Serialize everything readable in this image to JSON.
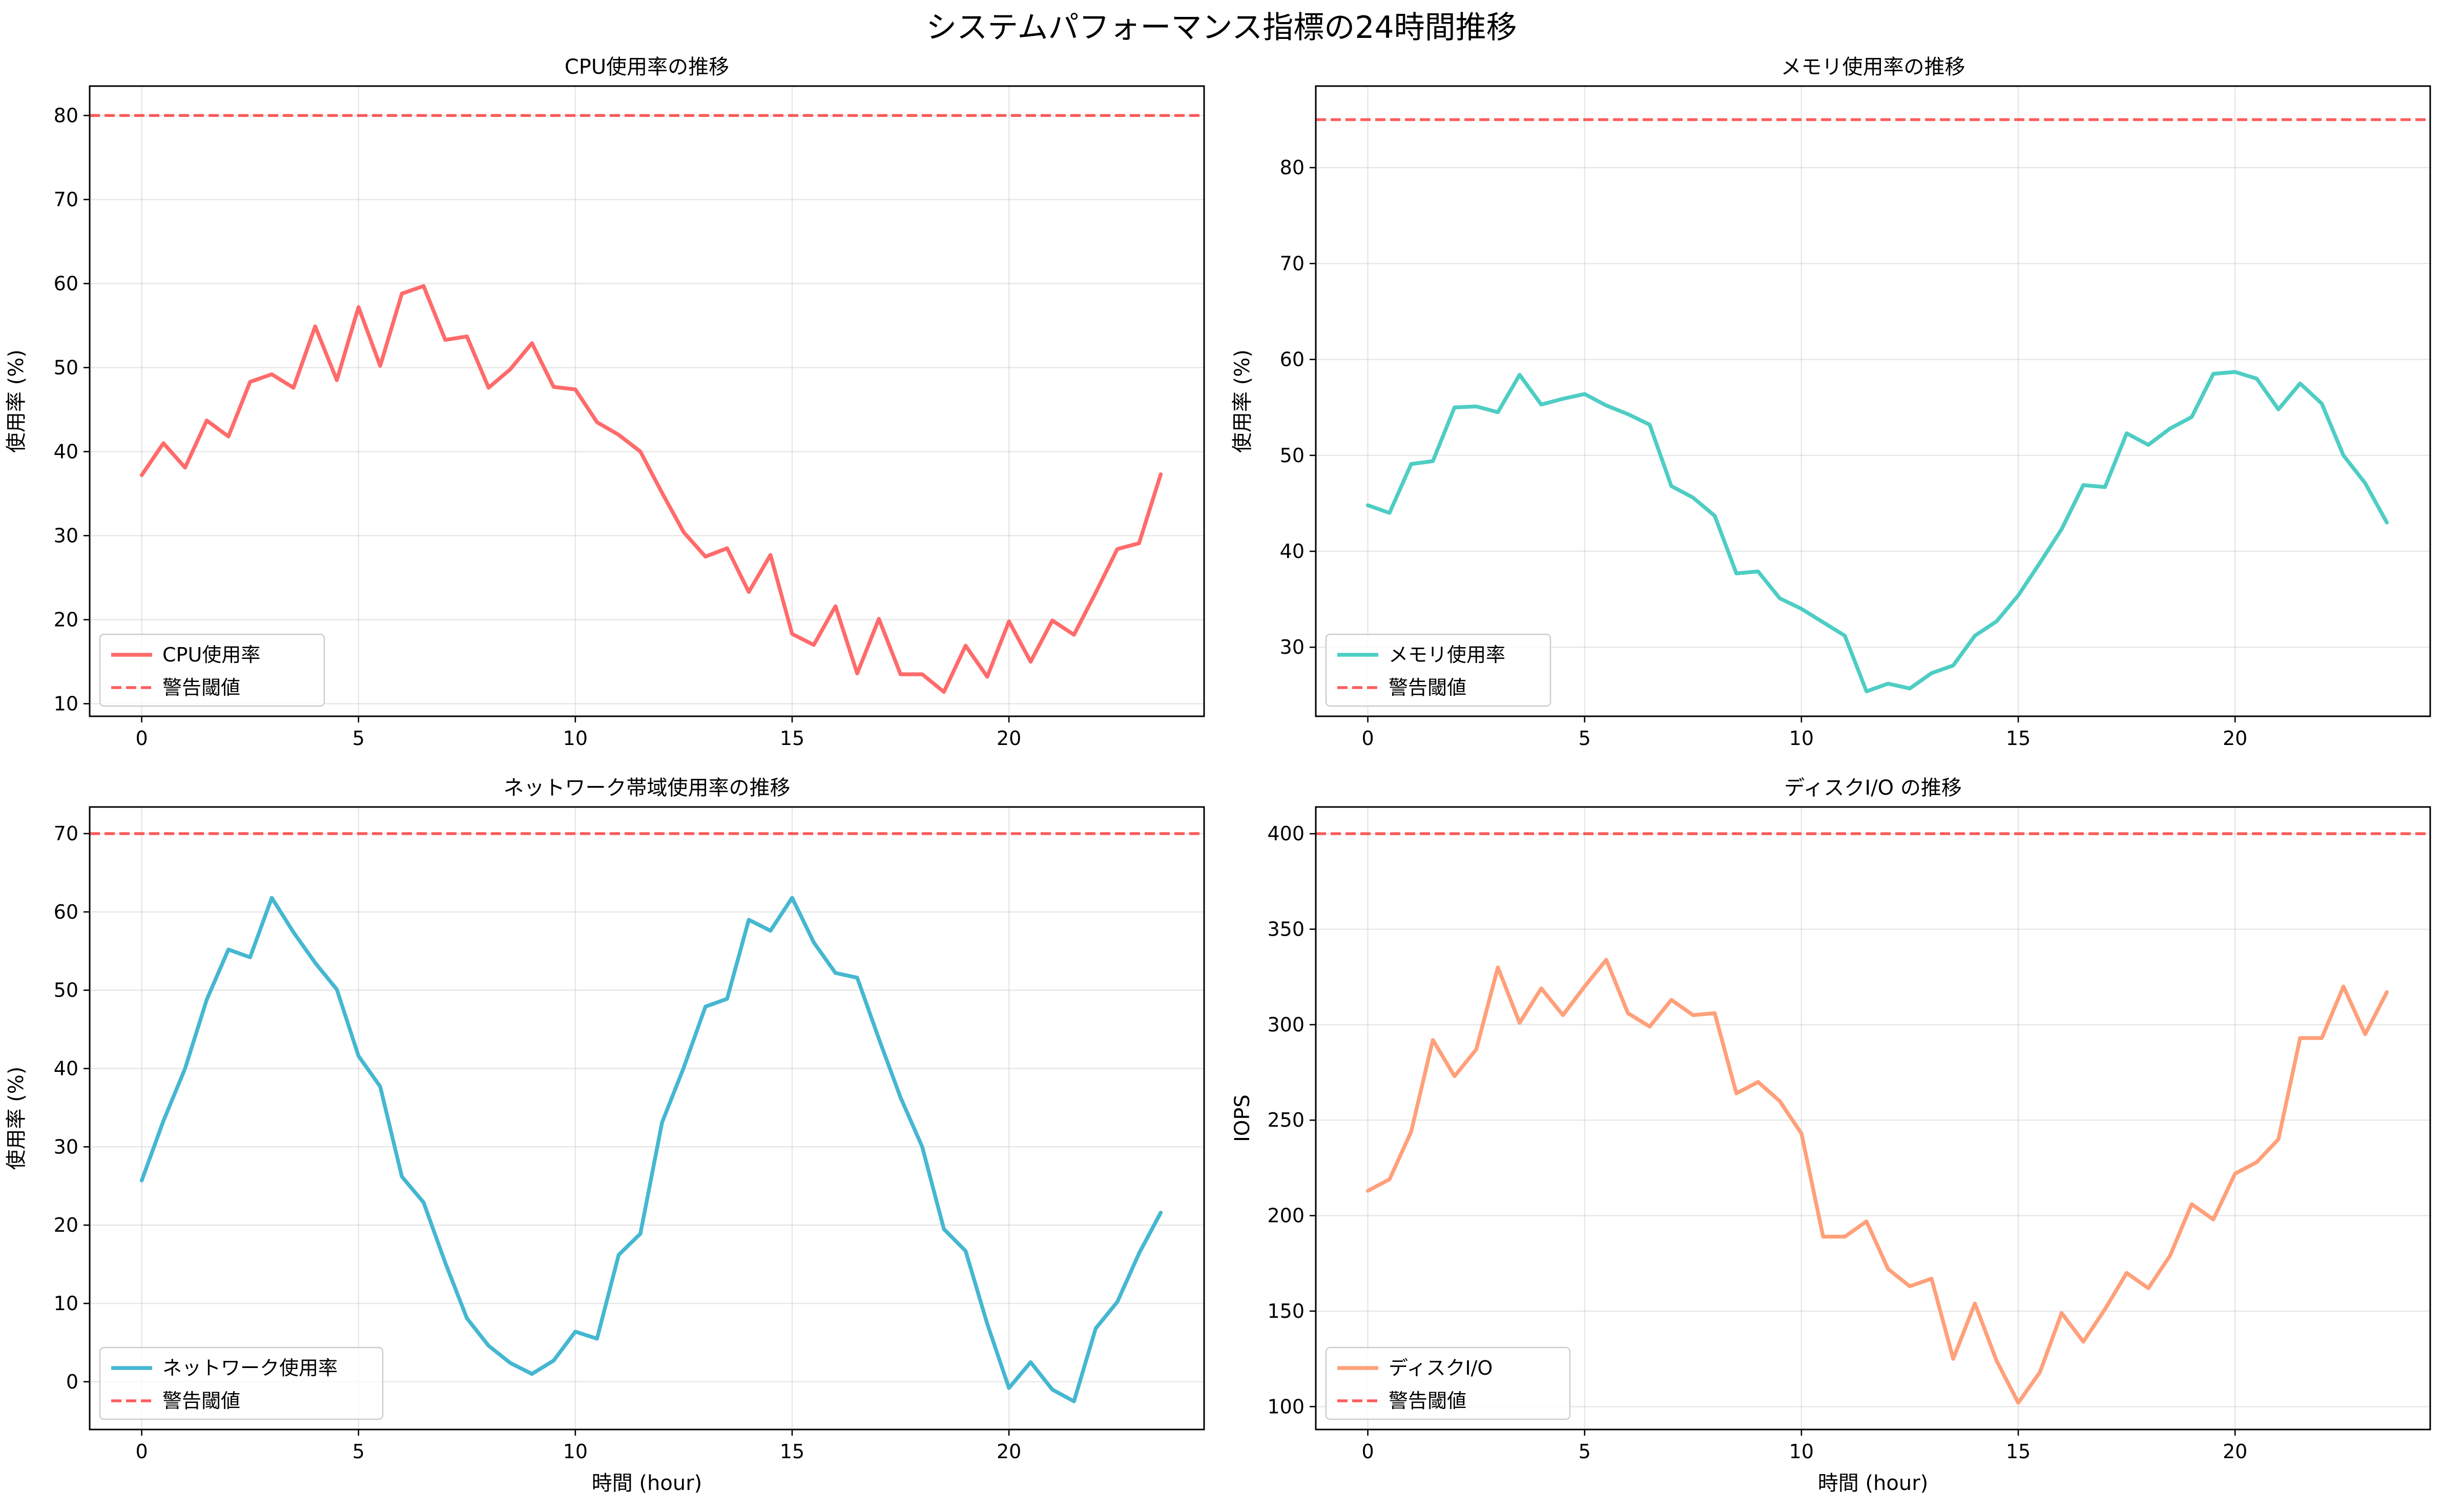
{
  "title": "システムパフォーマンス指標の24時間推移",
  "chart_data": [
    {
      "type": "line",
      "title": "CPU使用率の推移",
      "xlabel": "",
      "ylabel": "使用率 (%)",
      "xlim": [
        -1.2,
        24.5
      ],
      "ylim": [
        8.5,
        83.5
      ],
      "xticks": [
        0,
        5,
        10,
        15,
        20
      ],
      "yticks": [
        10,
        20,
        30,
        40,
        50,
        60,
        70,
        80
      ],
      "grid": true,
      "legend_position": "lower-left",
      "x": [
        0,
        0.5,
        1,
        1.5,
        2,
        2.5,
        3,
        3.5,
        4,
        4.5,
        5,
        5.5,
        6,
        6.5,
        7,
        7.5,
        8,
        8.5,
        9,
        9.5,
        10,
        10.5,
        11,
        11.5,
        12,
        12.5,
        13,
        13.5,
        14,
        14.5,
        15,
        15.5,
        16,
        16.5,
        17,
        17.5,
        18,
        18.5,
        19,
        19.5,
        20,
        20.5,
        21,
        21.5,
        22,
        22.5,
        23,
        23.5
      ],
      "series": [
        {
          "name": "CPU使用率",
          "color": "#ff6b6b",
          "style": "solid",
          "values": [
            37.2,
            41.0,
            38.1,
            43.7,
            41.8,
            48.3,
            49.2,
            47.6,
            54.9,
            48.5,
            57.2,
            50.2,
            58.8,
            59.7,
            53.3,
            53.7,
            47.6,
            49.8,
            52.9,
            47.7,
            47.4,
            43.5,
            42.0,
            40.0,
            35.1,
            30.4,
            27.5,
            28.5,
            23.3,
            27.7,
            18.3,
            17.0,
            21.6,
            13.6,
            20.1,
            13.5,
            13.5,
            11.4,
            16.9,
            13.2,
            19.8,
            15.0,
            19.9,
            18.2,
            23.2,
            28.4,
            29.1,
            37.3
          ]
        },
        {
          "name": "警告閾値",
          "color": "#ff3333",
          "style": "dashed",
          "hline": 80
        }
      ]
    },
    {
      "type": "line",
      "title": "メモリ使用率の推移",
      "xlabel": "",
      "ylabel": "使用率 (%)",
      "xlim": [
        -1.2,
        24.5
      ],
      "ylim": [
        22.8,
        88.5
      ],
      "xticks": [
        0,
        5,
        10,
        15,
        20
      ],
      "yticks": [
        30,
        40,
        50,
        60,
        70,
        80
      ],
      "grid": true,
      "legend_position": "lower-left",
      "x": [
        0,
        0.5,
        1,
        1.5,
        2,
        2.5,
        3,
        3.5,
        4,
        4.5,
        5,
        5.5,
        6,
        6.5,
        7,
        7.5,
        8,
        8.5,
        9,
        9.5,
        10,
        10.5,
        11,
        11.5,
        12,
        12.5,
        13,
        13.5,
        14,
        14.5,
        15,
        15.5,
        16,
        16.5,
        17,
        17.5,
        18,
        18.5,
        19,
        19.5,
        20,
        20.5,
        21,
        21.5,
        22,
        22.5,
        23,
        23.5
      ],
      "series": [
        {
          "name": "メモリ使用率",
          "color": "#4ecdc4",
          "style": "solid",
          "values": [
            44.8,
            44.0,
            49.1,
            49.4,
            55.0,
            55.1,
            54.5,
            58.4,
            55.3,
            55.9,
            56.4,
            55.2,
            54.3,
            53.2,
            46.8,
            45.6,
            43.7,
            37.7,
            37.9,
            35.1,
            34.0,
            32.6,
            31.2,
            25.4,
            26.2,
            25.7,
            27.3,
            28.1,
            31.2,
            32.7,
            35.4,
            38.8,
            42.3,
            46.9,
            46.7,
            52.3,
            51.1,
            52.8,
            54.0,
            58.5,
            58.7,
            58.0,
            54.8,
            57.5,
            55.4,
            50.0,
            47.1,
            43.0
          ]
        },
        {
          "name": "警告閾値",
          "color": "#ff3333",
          "style": "dashed",
          "hline": 85
        }
      ]
    },
    {
      "type": "line",
      "title": "ネットワーク帯域使用率の推移",
      "xlabel": "時間 (hour)",
      "ylabel": "使用率 (%)",
      "xlim": [
        -1.2,
        24.5
      ],
      "ylim": [
        -6.1,
        73.4
      ],
      "xticks": [
        0,
        5,
        10,
        15,
        20
      ],
      "yticks": [
        0,
        10,
        20,
        30,
        40,
        50,
        60,
        70
      ],
      "grid": true,
      "legend_position": "lower-left",
      "x": [
        0,
        0.5,
        1,
        1.5,
        2,
        2.5,
        3,
        3.5,
        4,
        4.5,
        5,
        5.5,
        6,
        6.5,
        7,
        7.5,
        8,
        8.5,
        9,
        9.5,
        10,
        10.5,
        11,
        11.5,
        12,
        12.5,
        13,
        13.5,
        14,
        14.5,
        15,
        15.5,
        16,
        16.5,
        17,
        17.5,
        18,
        18.5,
        19,
        19.5,
        20,
        20.5,
        21,
        21.5,
        22,
        22.5,
        23,
        23.5
      ],
      "series": [
        {
          "name": "ネットワーク使用率",
          "color": "#45b7d1",
          "style": "solid",
          "values": [
            25.7,
            33.3,
            40.0,
            48.8,
            55.2,
            54.2,
            61.8,
            57.4,
            53.5,
            50.1,
            41.6,
            37.7,
            26.2,
            22.9,
            15.2,
            8.1,
            4.6,
            2.4,
            1.0,
            2.7,
            6.4,
            5.5,
            16.2,
            18.9,
            33.1,
            40.1,
            47.9,
            48.9,
            59.0,
            57.6,
            61.8,
            56.1,
            52.2,
            51.6,
            43.8,
            36.3,
            30.0,
            19.5,
            16.7,
            7.4,
            -0.8,
            2.5,
            -1.0,
            -2.5,
            6.8,
            10.2,
            16.4,
            21.6
          ]
        },
        {
          "name": "警告閾値",
          "color": "#ff3333",
          "style": "dashed",
          "hline": 70
        }
      ]
    },
    {
      "type": "line",
      "title": "ディスクI/O の推移",
      "xlabel": "時間 (hour)",
      "ylabel": "IOPS",
      "xlim": [
        -1.2,
        24.5
      ],
      "ylim": [
        88,
        414
      ],
      "xticks": [
        0,
        5,
        10,
        15,
        20
      ],
      "yticks": [
        100,
        150,
        200,
        250,
        300,
        350,
        400
      ],
      "grid": true,
      "legend_position": "lower-left",
      "x": [
        0,
        0.5,
        1,
        1.5,
        2,
        2.5,
        3,
        3.5,
        4,
        4.5,
        5,
        5.5,
        6,
        6.5,
        7,
        7.5,
        8,
        8.5,
        9,
        9.5,
        10,
        10.5,
        11,
        11.5,
        12,
        12.5,
        13,
        13.5,
        14,
        14.5,
        15,
        15.5,
        16,
        16.5,
        17,
        17.5,
        18,
        18.5,
        19,
        19.5,
        20,
        20.5,
        21,
        21.5,
        22,
        22.5,
        23,
        23.5
      ],
      "series": [
        {
          "name": "ディスクI/O",
          "color": "#ffa07a",
          "style": "solid",
          "values": [
            213,
            219,
            244,
            292,
            273,
            287,
            330,
            301,
            319,
            305,
            320,
            334,
            306,
            299,
            313,
            305,
            306,
            264,
            270,
            260,
            243,
            189,
            189,
            197,
            172,
            163,
            167,
            125,
            154,
            124,
            102,
            118,
            149,
            134,
            151,
            170,
            162,
            179,
            206,
            198,
            222,
            228,
            240,
            293,
            293,
            320,
            295,
            317
          ]
        },
        {
          "name": "警告閾値",
          "color": "#ff3333",
          "style": "dashed",
          "hline": 400
        }
      ]
    }
  ]
}
